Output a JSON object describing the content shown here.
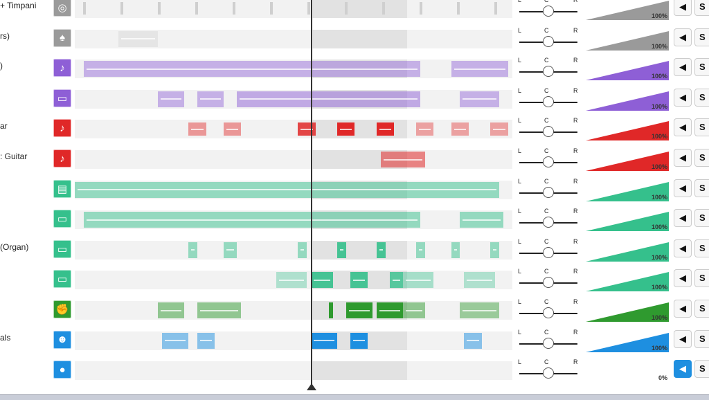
{
  "colors": {
    "gray": "#9a9a9a",
    "purple": "#8e5fd6",
    "red": "#e02828",
    "teal": "#35c08c",
    "green": "#2f9a2f",
    "blue": "#1e8fe0"
  },
  "pan_labels": {
    "left": "L",
    "center": "C",
    "right": "R"
  },
  "solo_label": "S",
  "tracks": [
    {
      "label": "+ Timpani",
      "icon": "drum-icon",
      "glyph": "◎",
      "color": "#9a9a9a",
      "volume": "100%",
      "volume_level": 1.0,
      "pan": 0.5,
      "muted": false,
      "clips": [],
      "ticks": true
    },
    {
      "label": "rs)",
      "icon": "guitar-pick-icon",
      "glyph": "♠",
      "color": "#9a9a9a",
      "volume": "100%",
      "volume_level": 1.0,
      "pan": 0.5,
      "muted": false,
      "clips": [
        {
          "start": 0.1,
          "end": 0.19,
          "op": 0.15
        }
      ]
    },
    {
      "label": ")",
      "icon": "guitar-icon",
      "glyph": "♪",
      "color": "#8e5fd6",
      "volume": "100%",
      "volume_level": 1.0,
      "pan": 0.5,
      "muted": false,
      "clips": [
        {
          "start": 0.02,
          "end": 0.79,
          "op": 0.45
        },
        {
          "start": 0.86,
          "end": 0.99,
          "op": 0.45
        }
      ]
    },
    {
      "label": "",
      "icon": "keyboard-icon",
      "glyph": "▭",
      "color": "#8e5fd6",
      "volume": "100%",
      "volume_level": 1.0,
      "pan": 0.5,
      "muted": false,
      "clips": [
        {
          "start": 0.19,
          "end": 0.25,
          "op": 0.45
        },
        {
          "start": 0.28,
          "end": 0.34,
          "op": 0.45
        },
        {
          "start": 0.37,
          "end": 0.79,
          "op": 0.5
        },
        {
          "start": 0.88,
          "end": 0.97,
          "op": 0.45
        }
      ]
    },
    {
      "label": "ar",
      "icon": "electric-guitar-icon",
      "glyph": "♪",
      "color": "#e02828",
      "volume": "100%",
      "volume_level": 1.0,
      "pan": 0.5,
      "muted": false,
      "small": true,
      "clips": [
        {
          "start": 0.26,
          "end": 0.3,
          "op": 0.45
        },
        {
          "start": 0.34,
          "end": 0.38,
          "op": 0.45
        },
        {
          "start": 0.51,
          "end": 0.55,
          "op": 0.85
        },
        {
          "start": 0.6,
          "end": 0.64,
          "op": 1.0
        },
        {
          "start": 0.69,
          "end": 0.73,
          "op": 1.0
        },
        {
          "start": 0.78,
          "end": 0.82,
          "op": 0.4
        },
        {
          "start": 0.86,
          "end": 0.9,
          "op": 0.4
        },
        {
          "start": 0.95,
          "end": 0.99,
          "op": 0.4
        }
      ]
    },
    {
      "label": ": Guitar",
      "icon": "electric-guitar-icon",
      "glyph": "♪",
      "color": "#e02828",
      "volume": "100%",
      "volume_level": 1.0,
      "pan": 0.5,
      "muted": false,
      "clips": [
        {
          "start": 0.7,
          "end": 0.8,
          "op": 0.55
        }
      ]
    },
    {
      "label": "",
      "icon": "piano-icon",
      "glyph": "▤",
      "color": "#35c08c",
      "volume": "100%",
      "volume_level": 1.0,
      "pan": 0.5,
      "muted": false,
      "clips": [
        {
          "start": 0.0,
          "end": 0.97,
          "op": 0.5
        }
      ]
    },
    {
      "label": "",
      "icon": "keyboard-icon",
      "glyph": "▭",
      "color": "#35c08c",
      "volume": "100%",
      "volume_level": 1.0,
      "pan": 0.5,
      "muted": false,
      "clips": [
        {
          "start": 0.02,
          "end": 0.79,
          "op": 0.5
        },
        {
          "start": 0.88,
          "end": 0.98,
          "op": 0.5
        }
      ]
    },
    {
      "label": "(Organ)",
      "icon": "organ-icon",
      "glyph": "▭",
      "color": "#35c08c",
      "volume": "100%",
      "volume_level": 1.0,
      "pan": 0.5,
      "muted": false,
      "clips": [
        {
          "start": 0.26,
          "end": 0.28,
          "op": 0.5
        },
        {
          "start": 0.34,
          "end": 0.37,
          "op": 0.5
        },
        {
          "start": 0.51,
          "end": 0.53,
          "op": 0.5
        },
        {
          "start": 0.6,
          "end": 0.62,
          "op": 0.9
        },
        {
          "start": 0.69,
          "end": 0.71,
          "op": 0.9
        },
        {
          "start": 0.78,
          "end": 0.8,
          "op": 0.5
        },
        {
          "start": 0.86,
          "end": 0.88,
          "op": 0.5
        },
        {
          "start": 0.95,
          "end": 0.97,
          "op": 0.5
        }
      ]
    },
    {
      "label": "",
      "icon": "keyboard-icon",
      "glyph": "▭",
      "color": "#35c08c",
      "volume": "100%",
      "volume_level": 1.0,
      "pan": 0.5,
      "muted": false,
      "clips": [
        {
          "start": 0.46,
          "end": 0.53,
          "op": 0.35
        },
        {
          "start": 0.54,
          "end": 0.59,
          "op": 0.9
        },
        {
          "start": 0.63,
          "end": 0.67,
          "op": 0.9
        },
        {
          "start": 0.72,
          "end": 0.75,
          "op": 0.8
        },
        {
          "start": 0.75,
          "end": 0.82,
          "op": 0.4
        },
        {
          "start": 0.89,
          "end": 0.96,
          "op": 0.35
        }
      ]
    },
    {
      "label": "",
      "icon": "fist-icon",
      "glyph": "✊",
      "color": "#2f9a2f",
      "volume": "100%",
      "volume_level": 1.0,
      "pan": 0.5,
      "muted": false,
      "clips": [
        {
          "start": 0.19,
          "end": 0.25,
          "op": 0.5
        },
        {
          "start": 0.28,
          "end": 0.38,
          "op": 0.5
        },
        {
          "start": 0.58,
          "end": 0.59,
          "op": 1.0
        },
        {
          "start": 0.62,
          "end": 0.68,
          "op": 1.0
        },
        {
          "start": 0.69,
          "end": 0.75,
          "op": 1.0
        },
        {
          "start": 0.75,
          "end": 0.8,
          "op": 0.5
        },
        {
          "start": 0.88,
          "end": 0.97,
          "op": 0.45
        }
      ]
    },
    {
      "label": "als",
      "icon": "vocals-icon",
      "glyph": "☻",
      "color": "#1e8fe0",
      "volume": "100%",
      "volume_level": 1.0,
      "pan": 0.5,
      "muted": false,
      "clips": [
        {
          "start": 0.2,
          "end": 0.26,
          "op": 0.5
        },
        {
          "start": 0.28,
          "end": 0.32,
          "op": 0.5
        },
        {
          "start": 0.54,
          "end": 0.6,
          "op": 1.0
        },
        {
          "start": 0.63,
          "end": 0.67,
          "op": 1.0
        },
        {
          "start": 0.89,
          "end": 0.93,
          "op": 0.5
        }
      ]
    },
    {
      "label": "",
      "icon": "microphone-icon",
      "glyph": "●",
      "color": "#1e8fe0",
      "volume": "0%",
      "volume_level": 0.0,
      "pan": 0.5,
      "muted": true,
      "clips": []
    }
  ]
}
